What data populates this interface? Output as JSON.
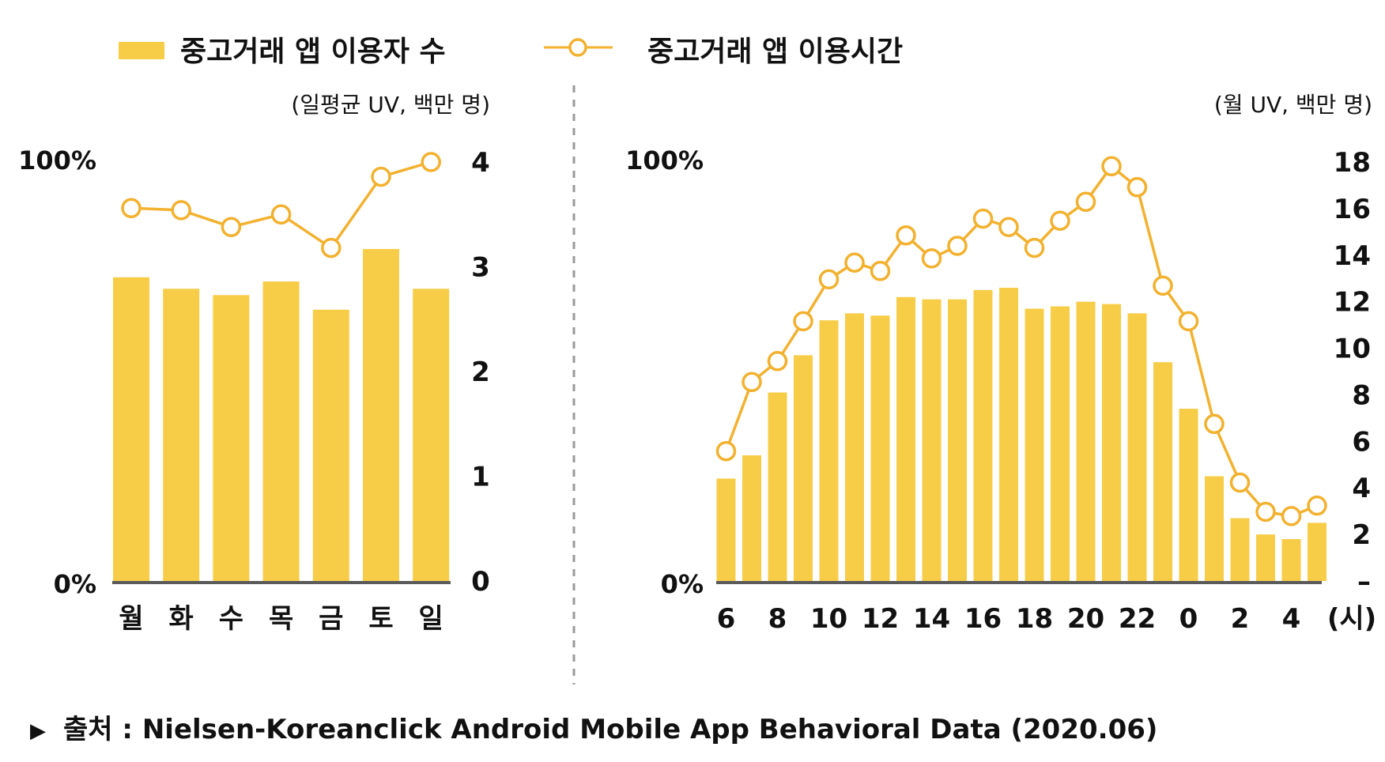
{
  "colors": {
    "bar": "#f7cd48",
    "line": "#f2b12e",
    "axis": "#5a5a5a",
    "divider": "#9a9a9a"
  },
  "legend": {
    "bar_label": "중고거래 앱 이용자 수",
    "line_label": "중고거래 앱 이용시간"
  },
  "source": {
    "marker": "▶",
    "text": "출처 : Nielsen-Koreanclick Android Mobile App Behavioral Data (2020.06)"
  },
  "chart_data": [
    {
      "type": "bar",
      "unit_label": "(일평균 UV, 백만 명)",
      "categories": [
        "월",
        "화",
        "수",
        "목",
        "금",
        "토",
        "일"
      ],
      "series": [
        {
          "name": "중고거래 앱 이용자 수",
          "type": "bar",
          "axis": "right",
          "values": [
            2.9,
            2.79,
            2.73,
            2.86,
            2.59,
            3.17,
            2.79
          ]
        },
        {
          "name": "중고거래 앱 이용시간",
          "type": "line",
          "axis": "left",
          "values": [
            89,
            88.5,
            84.5,
            87.5,
            79.5,
            96.5,
            100
          ]
        }
      ],
      "left_axis": {
        "min_label": "0%",
        "max_label": "100%",
        "range": [
          0,
          100
        ]
      },
      "right_axis": {
        "ticks": [
          0,
          1,
          2,
          3,
          4
        ],
        "range": [
          0,
          4
        ]
      }
    },
    {
      "type": "bar",
      "unit_label": "(월 UV, 백만 명)",
      "x_unit": "(시)",
      "categories": [
        "6",
        "7",
        "8",
        "9",
        "10",
        "11",
        "12",
        "13",
        "14",
        "15",
        "16",
        "17",
        "18",
        "19",
        "20",
        "21",
        "22",
        "23",
        "0",
        "1",
        "2",
        "3",
        "4",
        "5"
      ],
      "tick_labels": [
        "6",
        "8",
        "10",
        "12",
        "14",
        "16",
        "18",
        "20",
        "22",
        "0",
        "2",
        "4"
      ],
      "series": [
        {
          "name": "중고거래 앱 이용자 수",
          "type": "bar",
          "axis": "right",
          "values": [
            4.4,
            5.4,
            8.1,
            9.7,
            11.2,
            11.5,
            11.4,
            12.2,
            12.1,
            12.1,
            12.5,
            12.6,
            11.7,
            11.8,
            12.0,
            11.9,
            11.5,
            9.4,
            7.4,
            4.5,
            2.7,
            2.0,
            1.8,
            2.5
          ]
        },
        {
          "name": "중고거래 앱 이용시간",
          "type": "line",
          "axis": "left",
          "values": [
            31,
            47.5,
            52.5,
            62,
            72,
            76,
            74,
            82.5,
            77,
            80,
            86.5,
            84.5,
            79.5,
            86,
            90.5,
            99,
            94,
            70.5,
            62,
            37.5,
            23.5,
            16.5,
            15.5,
            18
          ]
        }
      ],
      "left_axis": {
        "min_label": "0%",
        "max_label": "100%",
        "range": [
          0,
          100
        ]
      },
      "right_axis": {
        "ticks": [
          2,
          4,
          6,
          8,
          10,
          12,
          14,
          16,
          18
        ],
        "zero_label": "–",
        "range": [
          0,
          18
        ]
      }
    }
  ]
}
